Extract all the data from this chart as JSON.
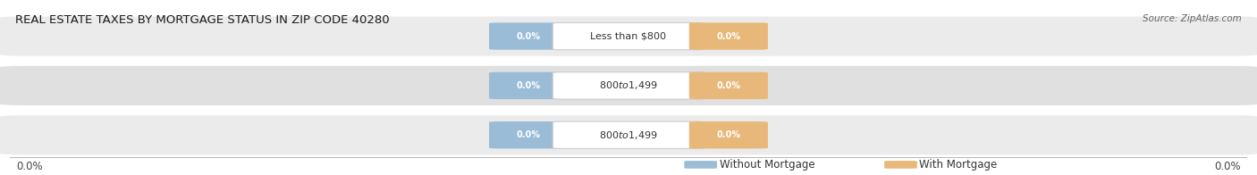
{
  "title": "REAL ESTATE TAXES BY MORTGAGE STATUS IN ZIP CODE 40280",
  "source": "Source: ZipAtlas.com",
  "categories": [
    "Less than $800",
    "$800 to $1,499",
    "$800 to $1,499"
  ],
  "without_mortgage": [
    0.0,
    0.0,
    0.0
  ],
  "with_mortgage": [
    0.0,
    0.0,
    0.0
  ],
  "bar_color_without": "#9bbcd6",
  "bar_color_with": "#e8b87a",
  "row_bg_colors": [
    "#ebebeb",
    "#e0e0e0",
    "#ebebeb"
  ],
  "left_label": "0.0%",
  "right_label": "0.0%",
  "legend_without": "Without Mortgage",
  "legend_with": "With Mortgage",
  "figsize": [
    14.06,
    1.96
  ],
  "dpi": 100,
  "title_fontsize": 9.5,
  "tick_fontsize": 8.5,
  "source_fontsize": 7.5,
  "legend_fontsize": 8.5,
  "cat_fontsize": 8,
  "pill_fontsize": 7
}
